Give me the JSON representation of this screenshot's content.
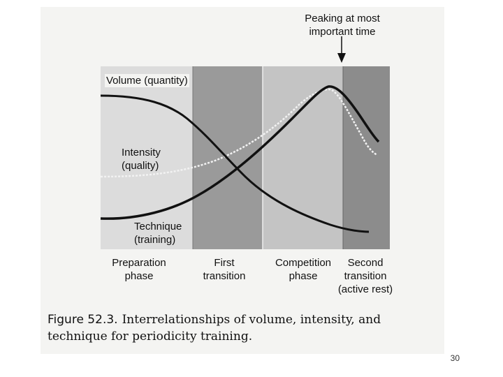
{
  "annotation": {
    "peak_line1": "Peaking at most",
    "peak_line2": "important time"
  },
  "curves": {
    "volume": "Volume (quantity)",
    "intensity_line1": "Intensity",
    "intensity_line2": "(quality)",
    "technique_line1": "Technique",
    "technique_line2": "(training)"
  },
  "phases": [
    {
      "line1": "Preparation",
      "line2": "phase",
      "line3": ""
    },
    {
      "line1": "First",
      "line2": "transition",
      "line3": ""
    },
    {
      "line1": "Competition",
      "line2": "phase",
      "line3": ""
    },
    {
      "line1": "Second",
      "line2": "transition",
      "line3": "(active rest)"
    }
  ],
  "caption": {
    "figure_label": "Figure 52.3.",
    "text": "Interrelationships of volume, intensity, and technique for periodicity training."
  },
  "slide_number": "30",
  "colors": {
    "background": "#ffffff",
    "scan": "#f4f4f2",
    "region_preparation": "#dcdcdc",
    "region_first_transition": "#9a9a9a",
    "region_competition": "#c4c4c4",
    "region_second_transition": "#8c8c8c",
    "curve": "#111111"
  }
}
